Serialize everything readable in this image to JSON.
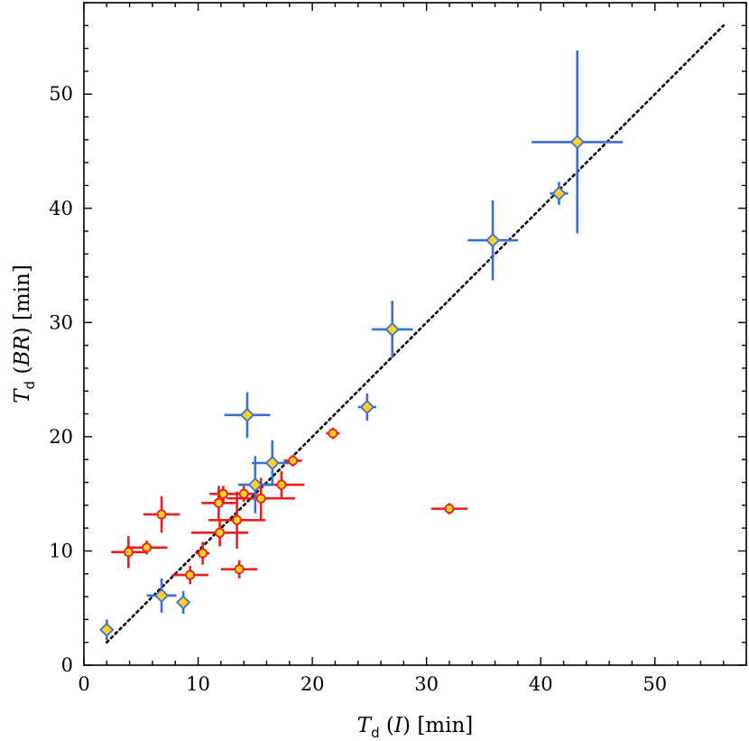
{
  "chart_data": {
    "type": "scatter",
    "xlabel": {
      "symbol": "T",
      "subscript": "d",
      "argument": "I",
      "unit": "[min]"
    },
    "ylabel": {
      "symbol": "T",
      "subscript": "d",
      "argument": "BR",
      "unit": "[min]"
    },
    "xlim": [
      0,
      58
    ],
    "ylim": [
      0,
      58
    ],
    "xticks": [
      0,
      10,
      20,
      30,
      40,
      50
    ],
    "yticks": [
      0,
      10,
      20,
      30,
      40,
      50
    ],
    "xticklabels": [
      "0",
      "10",
      "20",
      "30",
      "40",
      "50"
    ],
    "yticklabels": [
      "0",
      "10",
      "20",
      "30",
      "40",
      "50"
    ],
    "grid": false,
    "reference_line": {
      "style": "dotted",
      "from": [
        2,
        2
      ],
      "to": [
        56,
        56
      ],
      "color": "#000000"
    },
    "colors": {
      "blue_series": "#3a6fd8",
      "red_series": "#ee1c1c",
      "marker_fill": "#ffd21f"
    },
    "series": [
      {
        "marker": "diamond",
        "color": "#3a6fd8",
        "points": [
          {
            "x": 2.0,
            "y": 3.1,
            "xerr": 0.0,
            "yerr": 0.9
          },
          {
            "x": 6.8,
            "y": 6.1,
            "xerr": 1.3,
            "yerr": 1.5
          },
          {
            "x": 8.7,
            "y": 5.5,
            "xerr": 0.0,
            "yerr": 1.0
          },
          {
            "x": 14.3,
            "y": 21.9,
            "xerr": 2.0,
            "yerr": 2.0
          },
          {
            "x": 15.0,
            "y": 15.8,
            "xerr": 1.5,
            "yerr": 2.5
          },
          {
            "x": 16.5,
            "y": 17.7,
            "xerr": 1.8,
            "yerr": 2.0
          },
          {
            "x": 24.8,
            "y": 22.6,
            "xerr": 0.8,
            "yerr": 1.2
          },
          {
            "x": 27.0,
            "y": 29.4,
            "xerr": 1.8,
            "yerr": 2.5
          },
          {
            "x": 35.8,
            "y": 37.2,
            "xerr": 2.2,
            "yerr": 3.5
          },
          {
            "x": 41.6,
            "y": 41.3,
            "xerr": 0.8,
            "yerr": 1.0
          },
          {
            "x": 43.2,
            "y": 45.8,
            "xerr": 4.0,
            "yerr": 8.0
          }
        ]
      },
      {
        "marker": "circle",
        "color": "#ee1c1c",
        "points": [
          {
            "x": 3.9,
            "y": 9.9,
            "xerr": 1.5,
            "yerr": 1.4
          },
          {
            "x": 5.5,
            "y": 10.3,
            "xerr": 1.8,
            "yerr": 0.6
          },
          {
            "x": 6.8,
            "y": 13.2,
            "xerr": 1.6,
            "yerr": 1.6
          },
          {
            "x": 9.3,
            "y": 7.9,
            "xerr": 1.6,
            "yerr": 0.8
          },
          {
            "x": 10.4,
            "y": 9.8,
            "xerr": 0.6,
            "yerr": 1.0
          },
          {
            "x": 11.8,
            "y": 14.2,
            "xerr": 1.5,
            "yerr": 1.5
          },
          {
            "x": 11.9,
            "y": 11.6,
            "xerr": 2.5,
            "yerr": 1.2
          },
          {
            "x": 12.2,
            "y": 15.0,
            "xerr": 1.2,
            "yerr": 0.7
          },
          {
            "x": 13.4,
            "y": 12.7,
            "xerr": 2.5,
            "yerr": 2.5
          },
          {
            "x": 13.6,
            "y": 8.4,
            "xerr": 1.6,
            "yerr": 0.8
          },
          {
            "x": 14.0,
            "y": 15.0,
            "xerr": 1.2,
            "yerr": 0.7
          },
          {
            "x": 15.5,
            "y": 14.6,
            "xerr": 3.0,
            "yerr": 1.8
          },
          {
            "x": 17.3,
            "y": 15.8,
            "xerr": 2.0,
            "yerr": 1.2
          },
          {
            "x": 18.3,
            "y": 17.9,
            "xerr": 0.8,
            "yerr": 0.5
          },
          {
            "x": 21.8,
            "y": 20.3,
            "xerr": 0.6,
            "yerr": 0.5
          },
          {
            "x": 32.0,
            "y": 13.7,
            "xerr": 1.6,
            "yerr": 0.5
          }
        ]
      }
    ]
  }
}
